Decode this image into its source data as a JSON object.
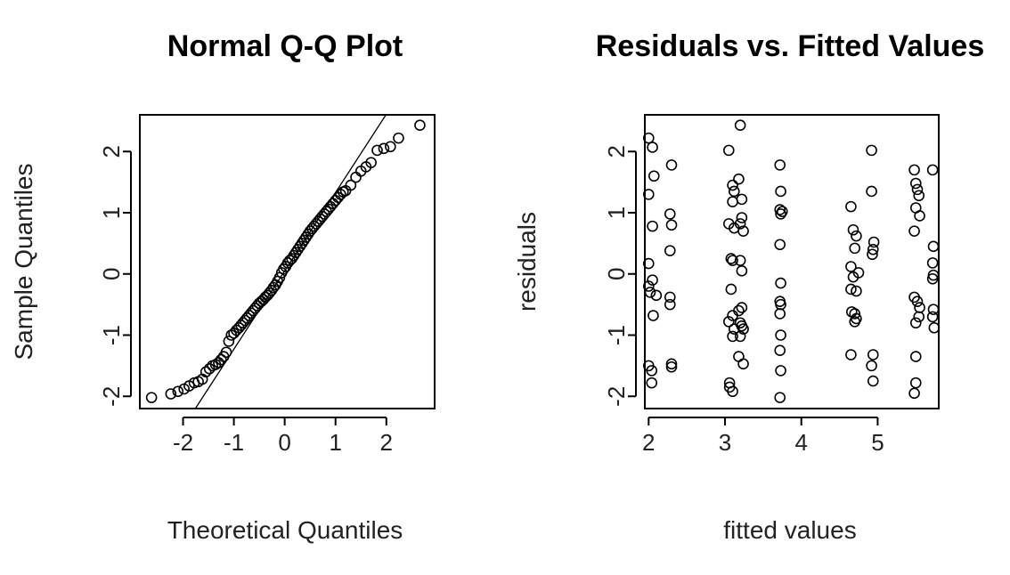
{
  "chart_data": [
    {
      "type": "scatter",
      "title": "Normal Q-Q Plot",
      "xlabel": "Theoretical Quantiles",
      "ylabel": "Sample Quantiles",
      "xlim": [
        -2.85,
        2.95
      ],
      "ylim": [
        -2.2,
        2.6
      ],
      "xticks": [
        -2,
        -1,
        0,
        1,
        2
      ],
      "yticks": [
        -2,
        -1,
        0,
        1,
        2
      ],
      "grid": false,
      "reference_line": {
        "intercept": 0.05,
        "slope": 1.28
      },
      "points": [
        [
          -2.62,
          -2.02
        ],
        [
          -2.24,
          -1.96
        ],
        [
          -2.1,
          -1.92
        ],
        [
          -1.98,
          -1.88
        ],
        [
          -1.88,
          -1.83
        ],
        [
          -1.78,
          -1.78
        ],
        [
          -1.7,
          -1.76
        ],
        [
          -1.62,
          -1.72
        ],
        [
          -1.55,
          -1.6
        ],
        [
          -1.48,
          -1.55
        ],
        [
          -1.42,
          -1.5
        ],
        [
          -1.36,
          -1.48
        ],
        [
          -1.3,
          -1.45
        ],
        [
          -1.25,
          -1.4
        ],
        [
          -1.2,
          -1.35
        ],
        [
          -1.15,
          -1.28
        ],
        [
          -1.1,
          -1.1
        ],
        [
          -1.05,
          -1.0
        ],
        [
          -1.0,
          -0.97
        ],
        [
          -0.95,
          -0.92
        ],
        [
          -0.9,
          -0.88
        ],
        [
          -0.86,
          -0.84
        ],
        [
          -0.82,
          -0.8
        ],
        [
          -0.78,
          -0.76
        ],
        [
          -0.74,
          -0.72
        ],
        [
          -0.7,
          -0.68
        ],
        [
          -0.66,
          -0.64
        ],
        [
          -0.62,
          -0.6
        ],
        [
          -0.58,
          -0.56
        ],
        [
          -0.54,
          -0.52
        ],
        [
          -0.5,
          -0.48
        ],
        [
          -0.46,
          -0.45
        ],
        [
          -0.42,
          -0.42
        ],
        [
          -0.38,
          -0.38
        ],
        [
          -0.34,
          -0.35
        ],
        [
          -0.3,
          -0.31
        ],
        [
          -0.26,
          -0.27
        ],
        [
          -0.22,
          -0.22
        ],
        [
          -0.18,
          -0.18
        ],
        [
          -0.14,
          -0.12
        ],
        [
          -0.1,
          -0.06
        ],
        [
          -0.06,
          0.02
        ],
        [
          -0.02,
          0.08
        ],
        [
          0.02,
          0.12
        ],
        [
          0.06,
          0.18
        ],
        [
          0.1,
          0.22
        ],
        [
          0.14,
          0.25
        ],
        [
          0.18,
          0.3
        ],
        [
          0.22,
          0.35
        ],
        [
          0.26,
          0.4
        ],
        [
          0.3,
          0.45
        ],
        [
          0.34,
          0.5
        ],
        [
          0.38,
          0.55
        ],
        [
          0.42,
          0.6
        ],
        [
          0.46,
          0.65
        ],
        [
          0.5,
          0.7
        ],
        [
          0.54,
          0.74
        ],
        [
          0.58,
          0.78
        ],
        [
          0.62,
          0.82
        ],
        [
          0.66,
          0.86
        ],
        [
          0.7,
          0.9
        ],
        [
          0.74,
          0.94
        ],
        [
          0.78,
          0.98
        ],
        [
          0.82,
          1.02
        ],
        [
          0.86,
          1.06
        ],
        [
          0.9,
          1.1
        ],
        [
          0.95,
          1.15
        ],
        [
          1.0,
          1.2
        ],
        [
          1.05,
          1.25
        ],
        [
          1.1,
          1.3
        ],
        [
          1.15,
          1.34
        ],
        [
          1.2,
          1.36
        ],
        [
          1.3,
          1.45
        ],
        [
          1.4,
          1.58
        ],
        [
          1.5,
          1.68
        ],
        [
          1.6,
          1.75
        ],
        [
          1.7,
          1.82
        ],
        [
          1.82,
          2.02
        ],
        [
          1.95,
          2.05
        ],
        [
          2.08,
          2.08
        ],
        [
          2.24,
          2.22
        ],
        [
          2.66,
          2.43
        ]
      ]
    },
    {
      "type": "scatter",
      "title": "Residuals vs. Fitted Values",
      "xlabel": "fitted values",
      "ylabel": "residuals",
      "xlim": [
        1.95,
        5.8
      ],
      "ylim": [
        -2.2,
        2.6
      ],
      "xticks": [
        2,
        3,
        4,
        5
      ],
      "yticks": [
        -2,
        -1,
        0,
        1,
        2
      ],
      "grid": false,
      "points": [
        [
          2.0,
          2.22
        ],
        [
          2.05,
          2.07
        ],
        [
          2.07,
          1.6
        ],
        [
          2.0,
          1.3
        ],
        [
          2.3,
          1.78
        ],
        [
          2.28,
          0.98
        ],
        [
          2.3,
          0.8
        ],
        [
          2.05,
          0.78
        ],
        [
          2.28,
          0.38
        ],
        [
          2.0,
          0.17
        ],
        [
          2.05,
          -0.1
        ],
        [
          2.0,
          -0.2
        ],
        [
          2.02,
          -0.3
        ],
        [
          2.1,
          -0.35
        ],
        [
          2.28,
          -0.38
        ],
        [
          2.28,
          -0.5
        ],
        [
          2.06,
          -0.68
        ],
        [
          2.0,
          -1.5
        ],
        [
          2.04,
          -1.58
        ],
        [
          2.04,
          -1.78
        ],
        [
          2.3,
          -1.47
        ],
        [
          2.3,
          -1.52
        ],
        [
          3.05,
          2.02
        ],
        [
          3.2,
          2.43
        ],
        [
          3.1,
          1.45
        ],
        [
          3.12,
          1.35
        ],
        [
          3.18,
          1.55
        ],
        [
          3.22,
          1.22
        ],
        [
          3.1,
          1.18
        ],
        [
          3.22,
          0.92
        ],
        [
          3.2,
          0.82
        ],
        [
          3.05,
          0.82
        ],
        [
          3.12,
          0.75
        ],
        [
          3.24,
          0.7
        ],
        [
          3.08,
          0.25
        ],
        [
          3.1,
          0.22
        ],
        [
          3.2,
          0.22
        ],
        [
          3.22,
          0.05
        ],
        [
          3.08,
          -0.25
        ],
        [
          3.22,
          -0.55
        ],
        [
          3.18,
          -0.6
        ],
        [
          3.1,
          -0.68
        ],
        [
          3.05,
          -0.78
        ],
        [
          3.2,
          -0.8
        ],
        [
          3.22,
          -0.85
        ],
        [
          3.12,
          -0.9
        ],
        [
          3.24,
          -0.9
        ],
        [
          3.1,
          -1.02
        ],
        [
          3.2,
          -1.02
        ],
        [
          3.18,
          -1.35
        ],
        [
          3.24,
          -1.47
        ],
        [
          3.06,
          -1.78
        ],
        [
          3.06,
          -1.85
        ],
        [
          3.1,
          -1.92
        ],
        [
          3.72,
          1.78
        ],
        [
          3.73,
          1.35
        ],
        [
          3.72,
          1.05
        ],
        [
          3.75,
          1.02
        ],
        [
          3.73,
          0.98
        ],
        [
          3.72,
          0.48
        ],
        [
          3.73,
          -0.15
        ],
        [
          3.72,
          -0.45
        ],
        [
          3.73,
          -0.5
        ],
        [
          3.72,
          -0.65
        ],
        [
          3.73,
          -1.0
        ],
        [
          3.72,
          -1.25
        ],
        [
          3.73,
          -1.58
        ],
        [
          3.72,
          -2.02
        ],
        [
          4.65,
          1.1
        ],
        [
          4.68,
          0.72
        ],
        [
          4.72,
          0.62
        ],
        [
          4.7,
          0.42
        ],
        [
          4.65,
          0.12
        ],
        [
          4.75,
          0.02
        ],
        [
          4.68,
          -0.05
        ],
        [
          4.65,
          -0.25
        ],
        [
          4.72,
          -0.28
        ],
        [
          4.66,
          -0.62
        ],
        [
          4.7,
          -0.65
        ],
        [
          4.72,
          -0.73
        ],
        [
          4.7,
          -0.78
        ],
        [
          4.65,
          -1.32
        ],
        [
          4.92,
          2.02
        ],
        [
          4.92,
          1.35
        ],
        [
          4.95,
          0.52
        ],
        [
          4.94,
          0.4
        ],
        [
          4.93,
          0.32
        ],
        [
          4.94,
          -1.32
        ],
        [
          4.92,
          -1.5
        ],
        [
          4.94,
          -1.75
        ],
        [
          5.48,
          1.7
        ],
        [
          5.5,
          1.48
        ],
        [
          5.52,
          1.38
        ],
        [
          5.54,
          1.28
        ],
        [
          5.5,
          1.08
        ],
        [
          5.55,
          0.95
        ],
        [
          5.48,
          0.7
        ],
        [
          5.48,
          -0.38
        ],
        [
          5.52,
          -0.45
        ],
        [
          5.55,
          -0.55
        ],
        [
          5.5,
          -0.8
        ],
        [
          5.54,
          -0.7
        ],
        [
          5.5,
          -1.35
        ],
        [
          5.5,
          -1.78
        ],
        [
          5.48,
          -1.95
        ],
        [
          5.72,
          1.7
        ],
        [
          5.73,
          0.45
        ],
        [
          5.72,
          0.18
        ],
        [
          5.73,
          -0.02
        ],
        [
          5.72,
          -0.08
        ],
        [
          5.73,
          -0.58
        ],
        [
          5.72,
          -0.7
        ],
        [
          5.74,
          -0.88
        ]
      ]
    }
  ]
}
